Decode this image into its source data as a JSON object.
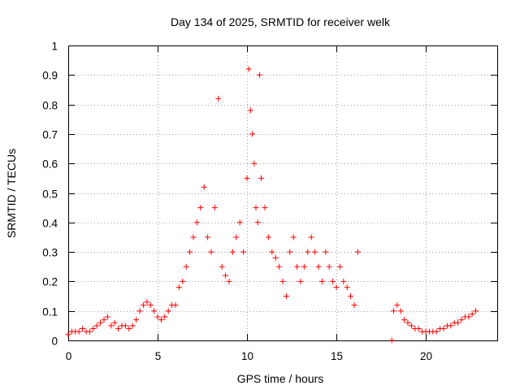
{
  "chart_data": {
    "type": "scatter",
    "title": "Day 134 of 2025, SRMTID for receiver welk",
    "xlabel": "GPS time / hours",
    "ylabel": "SRMTID / TECUs",
    "xlim": [
      0,
      24
    ],
    "ylim": [
      0,
      1
    ],
    "xticks": [
      0,
      5,
      10,
      15,
      20
    ],
    "yticks": [
      0,
      0.1,
      0.2,
      0.3,
      0.4,
      0.5,
      0.6,
      0.7,
      0.8,
      0.9,
      1
    ],
    "grid": true,
    "marker": "+",
    "color": "#ff0000",
    "series": [
      {
        "name": "SRMTID",
        "x": [
          0.0,
          0.2,
          0.4,
          0.6,
          0.8,
          1.0,
          1.2,
          1.4,
          1.6,
          1.8,
          2.0,
          2.2,
          2.4,
          2.6,
          2.8,
          3.0,
          3.2,
          3.4,
          3.6,
          3.8,
          4.0,
          4.2,
          4.4,
          4.6,
          4.8,
          5.0,
          5.2,
          5.4,
          5.6,
          5.8,
          6.0,
          6.2,
          6.4,
          6.6,
          6.8,
          7.0,
          7.2,
          7.4,
          7.6,
          7.8,
          8.0,
          8.2,
          8.4,
          8.6,
          8.8,
          9.0,
          9.2,
          9.4,
          9.6,
          9.8,
          10.0,
          10.1,
          10.2,
          10.3,
          10.4,
          10.5,
          10.6,
          10.7,
          10.8,
          11.0,
          11.2,
          11.4,
          11.6,
          11.8,
          12.0,
          12.2,
          12.4,
          12.6,
          12.8,
          13.0,
          13.2,
          13.4,
          13.6,
          13.8,
          14.0,
          14.2,
          14.4,
          14.6,
          14.8,
          15.0,
          15.2,
          15.4,
          15.6,
          15.8,
          16.0,
          16.2,
          18.1,
          18.2,
          18.4,
          18.6,
          18.8,
          19.0,
          19.2,
          19.4,
          19.6,
          19.8,
          20.0,
          20.2,
          20.4,
          20.6,
          20.8,
          21.0,
          21.2,
          21.4,
          21.6,
          21.8,
          22.0,
          22.2,
          22.4,
          22.6,
          22.8
        ],
        "y": [
          0.02,
          0.03,
          0.03,
          0.03,
          0.04,
          0.03,
          0.03,
          0.04,
          0.05,
          0.06,
          0.07,
          0.08,
          0.05,
          0.06,
          0.04,
          0.05,
          0.05,
          0.04,
          0.05,
          0.07,
          0.1,
          0.12,
          0.13,
          0.12,
          0.1,
          0.08,
          0.07,
          0.08,
          0.1,
          0.12,
          0.12,
          0.18,
          0.2,
          0.25,
          0.3,
          0.35,
          0.4,
          0.45,
          0.52,
          0.35,
          0.3,
          0.45,
          0.82,
          0.25,
          0.22,
          0.2,
          0.3,
          0.35,
          0.4,
          0.3,
          0.55,
          0.92,
          0.78,
          0.7,
          0.6,
          0.45,
          0.4,
          0.9,
          0.55,
          0.45,
          0.35,
          0.3,
          0.28,
          0.25,
          0.2,
          0.15,
          0.3,
          0.35,
          0.25,
          0.2,
          0.25,
          0.3,
          0.35,
          0.3,
          0.25,
          0.2,
          0.3,
          0.25,
          0.2,
          0.18,
          0.25,
          0.2,
          0.18,
          0.15,
          0.12,
          0.3,
          0.0,
          0.1,
          0.12,
          0.1,
          0.07,
          0.06,
          0.05,
          0.04,
          0.04,
          0.03,
          0.03,
          0.03,
          0.03,
          0.03,
          0.04,
          0.04,
          0.05,
          0.05,
          0.06,
          0.06,
          0.07,
          0.08,
          0.08,
          0.09,
          0.1
        ]
      }
    ]
  }
}
